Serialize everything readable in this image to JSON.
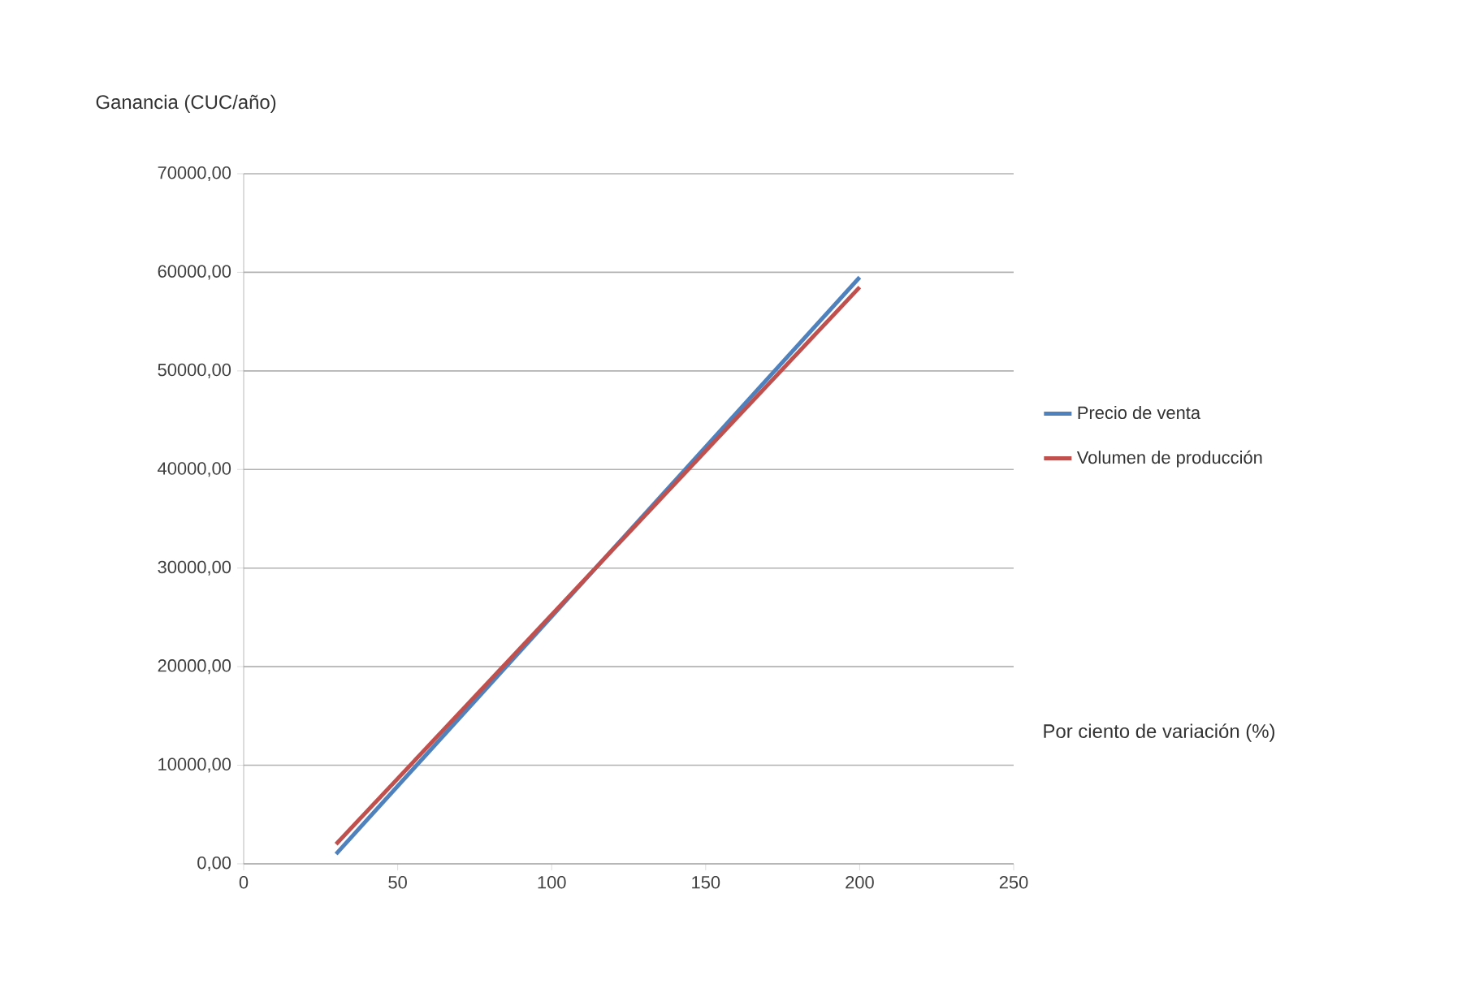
{
  "chart_data": {
    "type": "line",
    "ylabel": "Ganancia (CUC/año)",
    "xlabel": "Por ciento de variación (%)",
    "x": [
      30,
      200
    ],
    "series": [
      {
        "name": "Precio de venta",
        "color": "#4f81bd",
        "values": [
          1000,
          59500
        ]
      },
      {
        "name": "Volumen de producción",
        "color": "#c0504d",
        "values": [
          2000,
          58500
        ]
      }
    ],
    "xlim": [
      0,
      250
    ],
    "xticks": [
      0,
      50,
      100,
      150,
      200,
      250
    ],
    "ylim": [
      0,
      70000
    ],
    "yticks": [
      {
        "value": 0,
        "label": "0,00"
      },
      {
        "value": 10000,
        "label": "10000,00"
      },
      {
        "value": 20000,
        "label": "20000,00"
      },
      {
        "value": 30000,
        "label": "30000,00"
      },
      {
        "value": 40000,
        "label": "40000,00"
      },
      {
        "value": 50000,
        "label": "50000,00"
      },
      {
        "value": 60000,
        "label": "60000,00"
      },
      {
        "value": 70000,
        "label": "70000,00"
      }
    ],
    "grid": "y",
    "legend": "right",
    "marker": "none",
    "line_style": "solid"
  }
}
